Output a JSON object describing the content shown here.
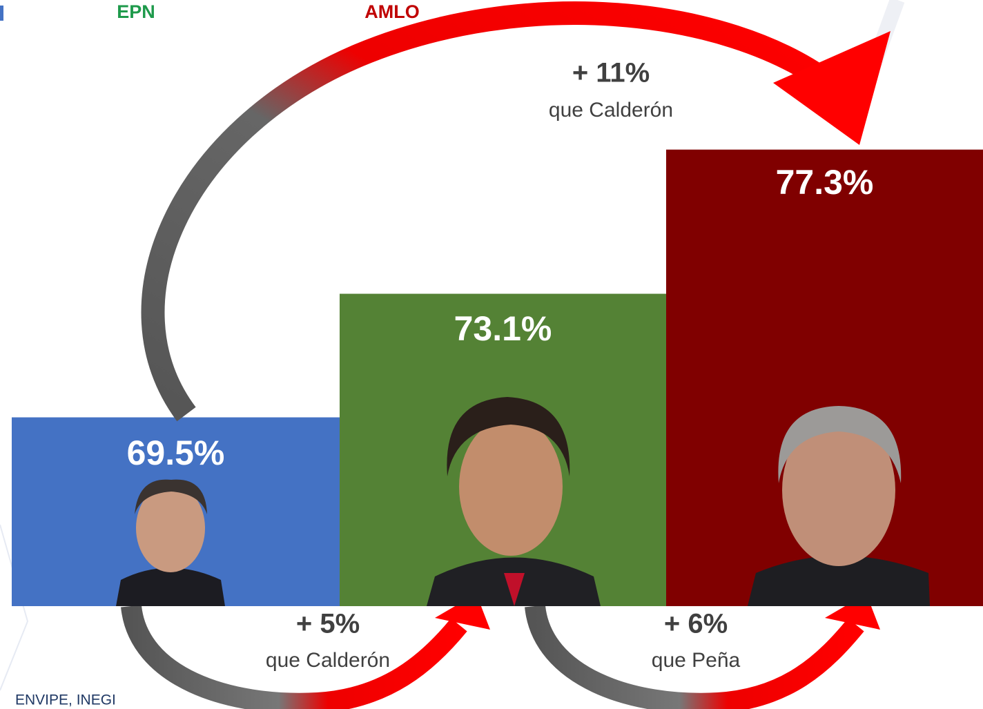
{
  "chart_data": {
    "type": "bar",
    "categories": [
      null,
      "EPN",
      "AMLO"
    ],
    "category_colors": [
      "#4472c4",
      "#1e9a4b",
      "#c00000"
    ],
    "values": [
      69.5,
      73.1,
      77.3
    ],
    "value_labels": [
      "69.5%",
      "73.1%",
      "77.3%"
    ],
    "colors": [
      "#4472c4",
      "#548235",
      "#800000"
    ],
    "ylim": [
      64,
      82
    ],
    "annotations": [
      "+ 11%",
      "que Calderón",
      "+ 5%",
      "que Calderón",
      "+ 6%",
      "que Peña"
    ],
    "source": "ENVIPE, INEGI"
  }
}
